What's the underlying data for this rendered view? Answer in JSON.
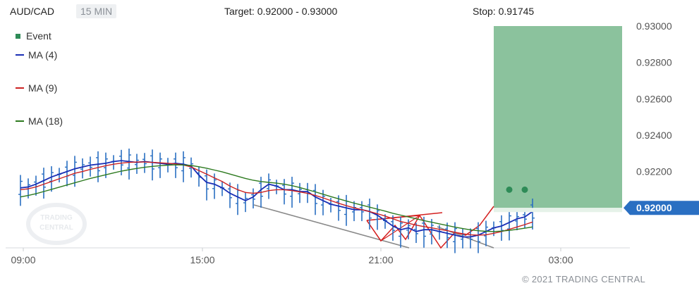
{
  "header": {
    "symbol": "AUD/CAD",
    "interval": "15 MIN",
    "target": "Target: 0.92000 - 0.93000",
    "stop": "Stop: 0.91745"
  },
  "legend": {
    "event": "Event",
    "ma4": "MA (4)",
    "ma9": "MA (9)",
    "ma18": "MA (18)"
  },
  "watermark": "TRADING CENTRAL",
  "current_price": "0.92000",
  "copyright": "© 2021 TRADING CENTRAL",
  "colors": {
    "event": "#2e8b57",
    "ma4": "#1a2fb5",
    "ma9": "#cc2222",
    "ma18": "#2d7a1f",
    "candles": "#2a6fc2",
    "target_zone": "#8bc29d",
    "price_tag": "#2a6fc2"
  },
  "chart_data": {
    "type": "line",
    "x_ticks": [
      "09:00",
      "15:00",
      "21:00",
      "03:00"
    ],
    "y_ticks": [
      "0.93000",
      "0.92800",
      "0.92600",
      "0.92400",
      "0.92200",
      "0.92000"
    ],
    "ylim": [
      0.9178,
      0.93
    ],
    "target_zone": [
      0.92,
      0.93
    ],
    "stop": 0.91745,
    "last_price": 0.92,
    "x": [
      "09:00",
      "09:15",
      "09:30",
      "09:45",
      "10:00",
      "10:15",
      "10:30",
      "10:45",
      "11:00",
      "11:15",
      "11:30",
      "11:45",
      "12:00",
      "12:15",
      "12:30",
      "12:45",
      "13:00",
      "13:15",
      "13:30",
      "13:45",
      "14:00",
      "14:15",
      "14:30",
      "14:45",
      "15:00",
      "15:15",
      "15:30",
      "15:45",
      "16:00",
      "16:15",
      "16:30",
      "16:45",
      "17:00",
      "17:15",
      "17:30",
      "17:45",
      "18:00",
      "18:15",
      "18:30",
      "18:45",
      "19:00",
      "19:15",
      "19:30",
      "19:45",
      "20:00",
      "20:15",
      "20:30",
      "20:45",
      "21:00",
      "21:15",
      "21:30",
      "21:45",
      "22:00",
      "22:15",
      "22:30",
      "22:45",
      "23:00",
      "23:15",
      "23:30",
      "23:45",
      "00:00",
      "00:15",
      "00:30",
      "00:45",
      "01:00",
      "01:15",
      "01:30"
    ],
    "series": [
      {
        "name": "MA (4)",
        "values": [
          0.9211,
          0.92115,
          0.9213,
          0.9215,
          0.9217,
          0.92185,
          0.922,
          0.92215,
          0.92225,
          0.92235,
          0.9224,
          0.92245,
          0.92255,
          0.9226,
          0.92255,
          0.9225,
          0.92255,
          0.9225,
          0.92245,
          0.9224,
          0.92245,
          0.9224,
          0.9223,
          0.9218,
          0.9214,
          0.9213,
          0.9211,
          0.9208,
          0.9206,
          0.9204,
          0.9206,
          0.921,
          0.9213,
          0.9212,
          0.921,
          0.921,
          0.9209,
          0.9209,
          0.9206,
          0.9204,
          0.9202,
          0.9201,
          0.92,
          0.9199,
          0.9199,
          0.9198,
          0.9196,
          0.9193,
          0.919,
          0.9188,
          0.9189,
          0.9187,
          0.9188,
          0.9188,
          0.9187,
          0.9186,
          0.9185,
          0.9184,
          0.9184,
          0.9185,
          0.9187,
          0.9189,
          0.919,
          0.9192,
          0.9194,
          0.9195,
          0.9198
        ]
      },
      {
        "name": "MA (9)",
        "values": [
          0.921,
          0.92105,
          0.92115,
          0.9213,
          0.92145,
          0.9216,
          0.92175,
          0.9219,
          0.922,
          0.92212,
          0.92222,
          0.92232,
          0.9224,
          0.92246,
          0.9225,
          0.92252,
          0.92252,
          0.9225,
          0.92248,
          0.92245,
          0.92242,
          0.92236,
          0.92225,
          0.92205,
          0.92185,
          0.92165,
          0.92145,
          0.9212,
          0.921,
          0.92085,
          0.9208,
          0.92085,
          0.92095,
          0.921,
          0.921,
          0.92095,
          0.92088,
          0.9208,
          0.92068,
          0.92055,
          0.9204,
          0.92025,
          0.92012,
          0.92,
          0.9199,
          0.9198,
          0.91968,
          0.91955,
          0.9194,
          0.91925,
          0.91915,
          0.91905,
          0.91897,
          0.9189,
          0.91882,
          0.91875,
          0.91866,
          0.91858,
          0.91852,
          0.9185,
          0.91852,
          0.9186,
          0.9187,
          0.91882,
          0.91895,
          0.91908,
          0.91922
        ]
      },
      {
        "name": "MA (18)",
        "values": [
          0.9206,
          0.92068,
          0.92078,
          0.9209,
          0.92102,
          0.92114,
          0.92126,
          0.92138,
          0.9215,
          0.92162,
          0.92172,
          0.92182,
          0.92192,
          0.92202,
          0.9221,
          0.92217,
          0.92223,
          0.92228,
          0.92232,
          0.92235,
          0.92237,
          0.92236,
          0.92233,
          0.92226,
          0.92218,
          0.92208,
          0.92198,
          0.92186,
          0.92174,
          0.92162,
          0.92152,
          0.92145,
          0.9214,
          0.92136,
          0.9213,
          0.92122,
          0.92112,
          0.921,
          0.92088,
          0.92075,
          0.92062,
          0.9205,
          0.92038,
          0.92026,
          0.92015,
          0.92004,
          0.91993,
          0.91982,
          0.9197,
          0.9196,
          0.9195,
          0.9194,
          0.9193,
          0.91921,
          0.91912,
          0.91903,
          0.91894,
          0.91886,
          0.91879,
          0.91874,
          0.91871,
          0.9187,
          0.91872,
          0.91876,
          0.91882,
          0.91888,
          0.91895
        ]
      }
    ],
    "events": [
      {
        "x": "00:45",
        "y": 0.921
      },
      {
        "x": "01:15",
        "y": 0.921
      }
    ]
  }
}
